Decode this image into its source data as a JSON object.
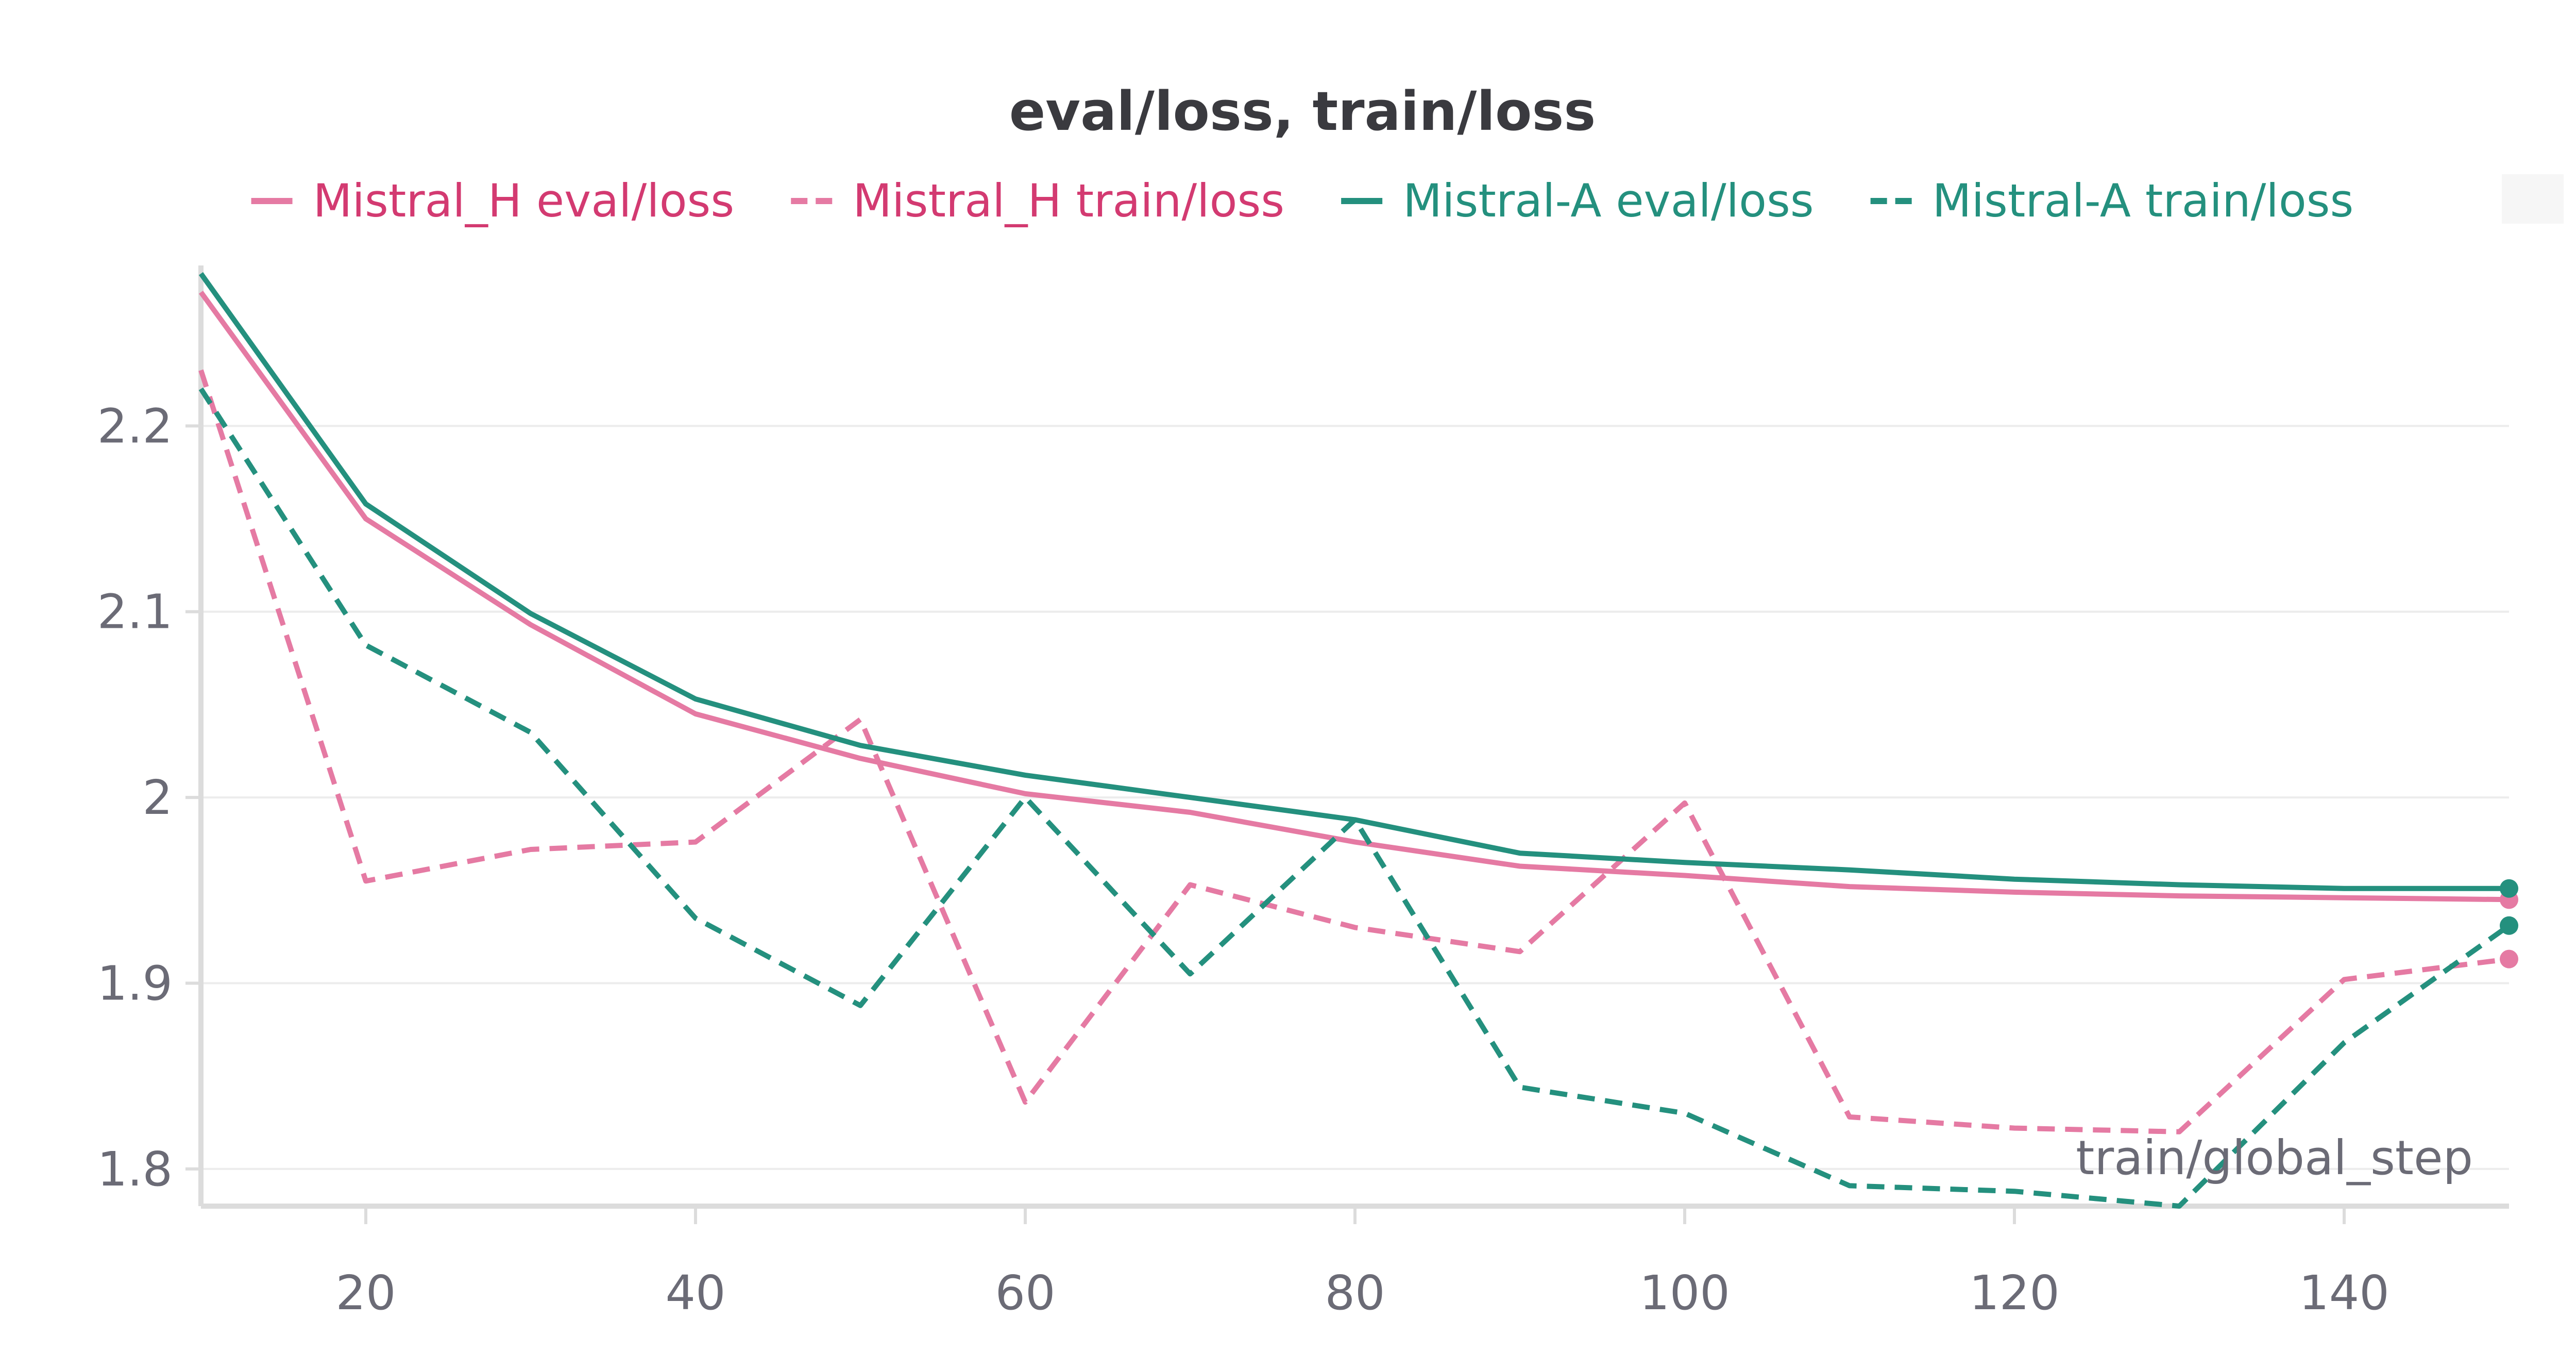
{
  "chart_data": {
    "type": "line",
    "title": "eval/loss, train/loss",
    "xlabel": "train/global_step",
    "ylabel": "",
    "xlim": [
      10,
      150
    ],
    "ylim": [
      1.78,
      2.285
    ],
    "x_ticks": [
      20,
      40,
      60,
      80,
      100,
      120,
      140
    ],
    "y_ticks": [
      1.8,
      1.9,
      2.0,
      2.1,
      2.2
    ],
    "y_tick_labels": [
      "1.8",
      "1.9",
      "2",
      "2.1",
      "2.2"
    ],
    "grid": true,
    "legend_position": "top",
    "series": [
      {
        "name": "Mistral_H eval/loss",
        "color": "#e57aa3",
        "dash": false,
        "x": [
          10,
          20,
          30,
          40,
          50,
          60,
          70,
          80,
          90,
          100,
          110,
          120,
          130,
          140,
          150
        ],
        "y": [
          2.272,
          2.15,
          2.093,
          2.045,
          2.021,
          2.002,
          1.992,
          1.976,
          1.963,
          1.958,
          1.952,
          1.949,
          1.947,
          1.946,
          1.945
        ]
      },
      {
        "name": "Mistral_H train/loss",
        "color": "#e57aa3",
        "dash": true,
        "x": [
          10,
          20,
          30,
          40,
          50,
          60,
          70,
          80,
          90,
          100,
          110,
          120,
          130,
          140,
          150
        ],
        "y": [
          2.23,
          1.955,
          1.972,
          1.976,
          2.042,
          1.836,
          1.953,
          1.93,
          1.917,
          1.997,
          1.828,
          1.822,
          1.82,
          1.902,
          1.913
        ]
      },
      {
        "name": "Mistral-A eval/loss",
        "color": "#24907e",
        "dash": false,
        "x": [
          10,
          20,
          30,
          40,
          50,
          60,
          70,
          80,
          90,
          100,
          110,
          120,
          130,
          140,
          150
        ],
        "y": [
          2.282,
          2.158,
          2.099,
          2.053,
          2.028,
          2.012,
          2.0,
          1.988,
          1.97,
          1.965,
          1.961,
          1.956,
          1.953,
          1.951,
          1.951
        ]
      },
      {
        "name": "Mistral-A train/loss",
        "color": "#24907e",
        "dash": true,
        "x": [
          10,
          20,
          30,
          40,
          50,
          60,
          70,
          80,
          90,
          100,
          110,
          120,
          130,
          140,
          150
        ],
        "y": [
          2.22,
          2.082,
          2.035,
          1.935,
          1.888,
          2.0,
          1.905,
          1.988,
          1.844,
          1.83,
          1.791,
          1.788,
          1.78,
          1.868,
          1.931
        ]
      }
    ]
  },
  "legend_title_color": "#d33a71",
  "axis_color": "#dcdcdc",
  "grid_color": "#ececec"
}
